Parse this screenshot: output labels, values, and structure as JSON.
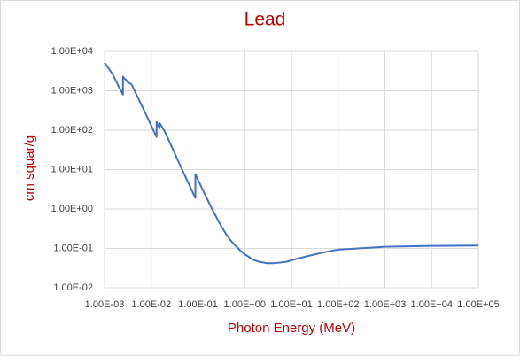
{
  "chart_data": {
    "type": "line",
    "title": "Lead",
    "x_label": "Photon Energy (MeV)",
    "y_label": "cm squar/g",
    "x_scale": "log",
    "y_scale": "log",
    "grid": true,
    "xlim": [
      0.001,
      100000
    ],
    "ylim": [
      0.01,
      10000
    ],
    "xticks": [
      {
        "value": 0.001,
        "label": "1.00E-03"
      },
      {
        "value": 0.01,
        "label": "1.00E-02"
      },
      {
        "value": 0.1,
        "label": "1.00E-01"
      },
      {
        "value": 1,
        "label": "1.00E+00"
      },
      {
        "value": 10,
        "label": "1.00E+01"
      },
      {
        "value": 100,
        "label": "1.00E+02"
      },
      {
        "value": 1000,
        "label": "1.00E+03"
      },
      {
        "value": 10000,
        "label": "1.00E+04"
      },
      {
        "value": 100000,
        "label": "1.00E+05"
      }
    ],
    "yticks": [
      {
        "value": 0.01,
        "label": "1.00E-02"
      },
      {
        "value": 0.1,
        "label": "1.00E-01"
      },
      {
        "value": 1,
        "label": "1.00E+00"
      },
      {
        "value": 10,
        "label": "1.00E+01"
      },
      {
        "value": 100,
        "label": "1.00E+02"
      },
      {
        "value": 1000,
        "label": "1.00E+03"
      },
      {
        "value": 10000,
        "label": "1.00E+04"
      }
    ],
    "x": [
      0.001,
      0.0015,
      0.002,
      0.00248,
      0.00248,
      0.0026,
      0.003,
      0.0031,
      0.0035,
      0.00385,
      0.005,
      0.008,
      0.01,
      0.013,
      0.013,
      0.015,
      0.0152,
      0.016,
      0.02,
      0.03,
      0.04,
      0.05,
      0.06,
      0.088,
      0.088,
      0.1,
      0.15,
      0.2,
      0.3,
      0.4,
      0.5,
      0.6,
      0.8,
      1,
      1.5,
      2,
      3,
      4,
      5,
      6,
      8,
      10,
      20,
      50,
      100,
      1000,
      10000,
      100000
    ],
    "series": [
      {
        "name": "Lead",
        "color": "#4472c4",
        "values": [
          5200,
          2600,
          1300,
          800,
          2300,
          2100,
          1800,
          1650,
          1550,
          1400,
          730,
          230,
          130,
          67,
          162,
          111,
          150,
          137,
          86,
          30,
          14,
          8,
          5,
          1.9,
          7.7,
          5.5,
          2.0,
          1.0,
          0.4,
          0.23,
          0.16,
          0.125,
          0.089,
          0.071,
          0.052,
          0.046,
          0.042,
          0.042,
          0.043,
          0.044,
          0.046,
          0.05,
          0.062,
          0.08,
          0.093,
          0.11,
          0.116,
          0.118
        ]
      }
    ]
  }
}
